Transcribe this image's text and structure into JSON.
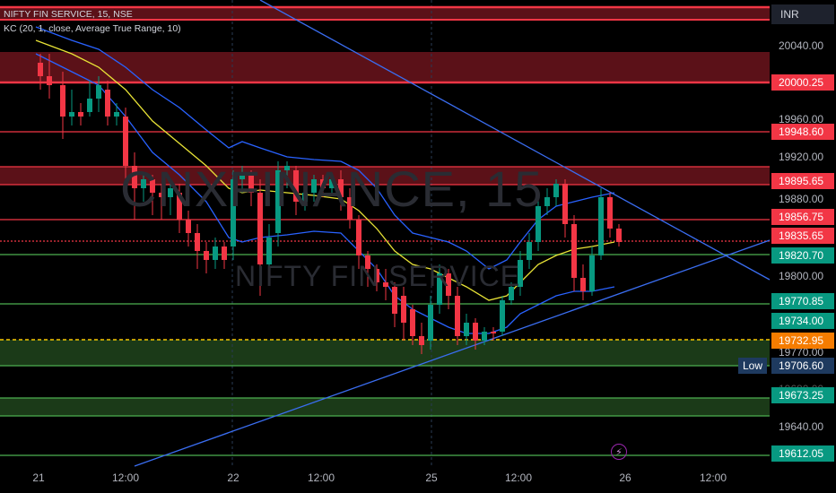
{
  "header": {
    "symbol_line": "NIFTY FIN SERVICE, 15, NSE",
    "indicator_line": "KC (20, 1, close, Average True Range, 10)"
  },
  "watermark": {
    "main": "CNXFINANCE, 15",
    "sub": "NIFTY FIN SERVICE"
  },
  "price_scale": {
    "currency": "INR",
    "ticks": [
      "20040.00",
      "19960.00",
      "19920.00",
      "19880.00",
      "19800.00",
      "19770.00",
      "19640.00"
    ],
    "partial_ticks": [
      "19680.00"
    ]
  },
  "price_tags": [
    {
      "value": "20000.25",
      "color": "#f23645"
    },
    {
      "value": "19948.60",
      "color": "#f23645"
    },
    {
      "value": "19895.65",
      "color": "#f23645"
    },
    {
      "value": "19856.75",
      "color": "#f23645"
    },
    {
      "value": "19835.65",
      "color": "#f23645"
    },
    {
      "value": "19820.70",
      "color": "#089981"
    },
    {
      "value": "19770.85",
      "color": "#089981"
    },
    {
      "value": "19734.00",
      "color": "#089981"
    },
    {
      "value": "19732.95",
      "color": "#f57c00"
    },
    {
      "value": "19706.60",
      "color": "#1e3a5f"
    },
    {
      "value": "19673.25",
      "color": "#089981"
    },
    {
      "value": "19612.05",
      "color": "#089981"
    }
  ],
  "low_label": "Low",
  "time_axis": [
    "21",
    "12:00",
    "22",
    "12:00",
    "25",
    "12:00",
    "26",
    "12:00"
  ],
  "colors": {
    "up": "#089981",
    "down": "#f23645",
    "kc_outer": "#2962ff",
    "kc_mid": "#e8e336"
  },
  "icons": {
    "event": "lightning-icon"
  }
}
